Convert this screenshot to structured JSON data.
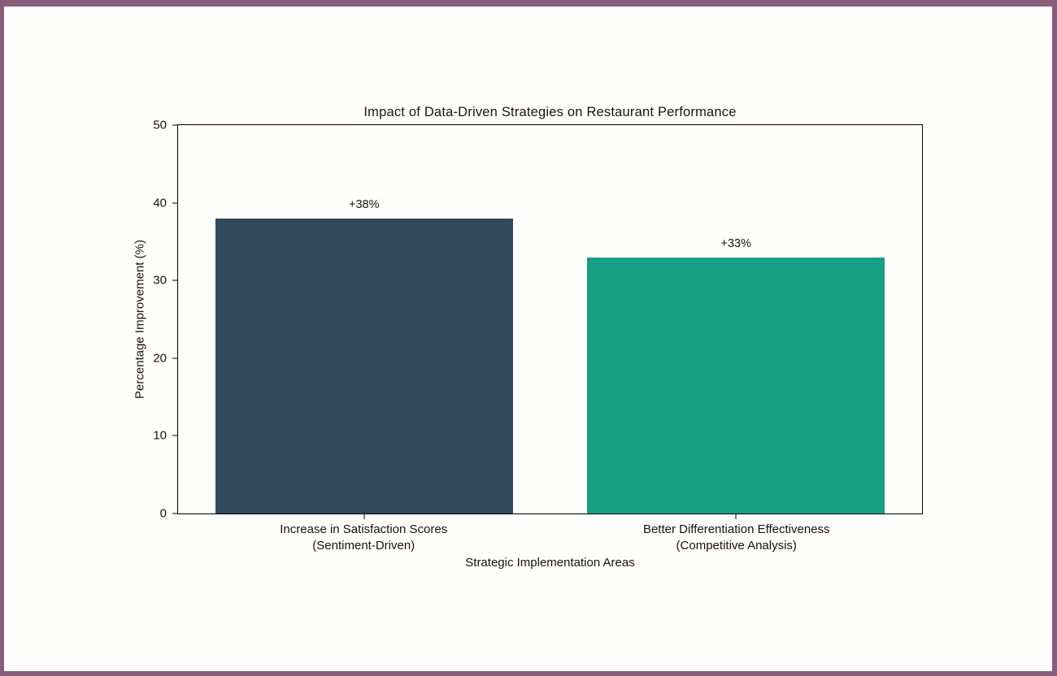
{
  "frame": {
    "border_color": "#875d7b",
    "background_color": "#fffefc"
  },
  "chart_data": {
    "type": "bar",
    "title": "Impact of Data-Driven Strategies on Restaurant Performance",
    "xlabel": "Strategic Implementation Areas",
    "ylabel": "Percentage Improvement (%)",
    "ylim": [
      0,
      50
    ],
    "yticks": [
      0,
      10,
      20,
      30,
      40,
      50
    ],
    "categories": [
      "Increase in Satisfaction Scores\n(Sentiment-Driven)",
      "Better Differentiation Effectiveness\n(Competitive Analysis)"
    ],
    "values": [
      38,
      33
    ],
    "value_labels": [
      "+38%",
      "+33%"
    ],
    "bar_colors": [
      "#33495e",
      "#17a086"
    ],
    "grid": false,
    "legend": false,
    "axis_box": true
  }
}
